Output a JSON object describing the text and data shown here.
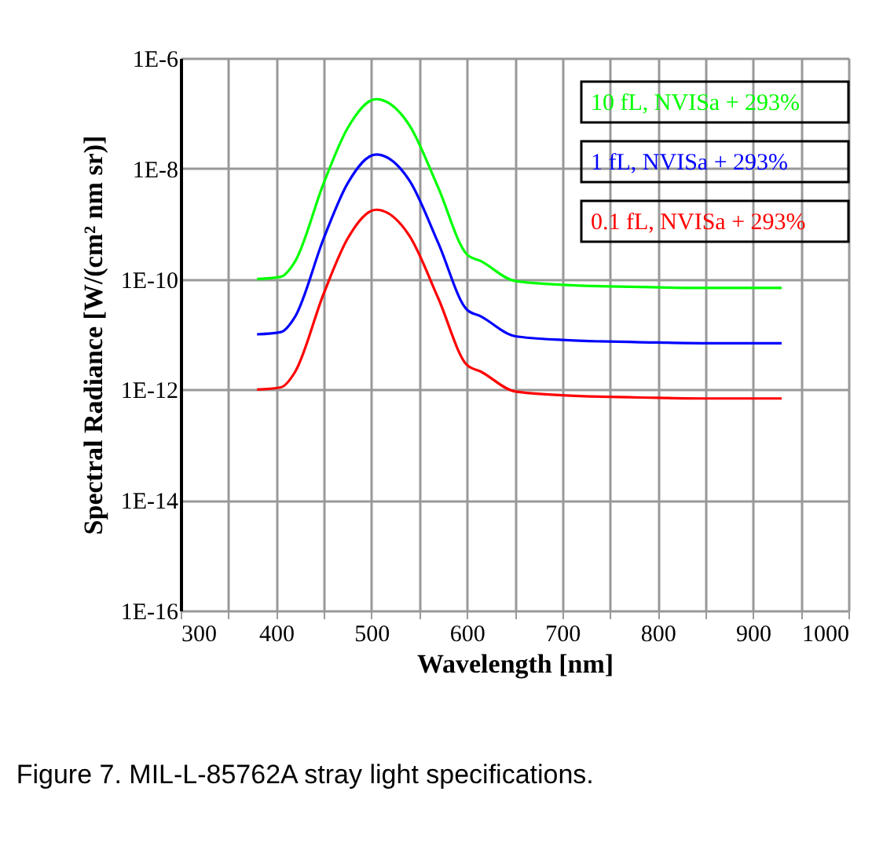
{
  "chart_data": {
    "type": "line",
    "xlabel": "Wavelength [nm]",
    "ylabel": "Spectral Radiance [W/(cm² nm sr)]",
    "x": [
      380,
      405,
      420,
      450,
      475,
      505,
      540,
      570,
      600,
      615,
      650,
      700,
      800,
      850,
      930
    ],
    "series": [
      {
        "name": "10 fL, NVISa + 293%",
        "color": "#00ff00",
        "values": [
          1e-10,
          1.1e-10,
          2.1e-10,
          5.5e-09,
          5.4e-08,
          1.8e-07,
          6e-08,
          4.5e-09,
          2.8e-10,
          2.1e-10,
          9.3e-11,
          7.9e-11,
          7.1e-11,
          6.9e-11,
          6.9e-11
        ]
      },
      {
        "name": "1 fL, NVISa + 293%",
        "color": "#0000ff",
        "values": [
          1e-11,
          1.1e-11,
          2.1e-11,
          5.5e-10,
          5.4e-09,
          1.8e-08,
          6e-09,
          4.5e-10,
          2.8e-11,
          2.1e-11,
          9.3e-12,
          7.9e-12,
          7.1e-12,
          6.9e-12,
          6.9e-12
        ]
      },
      {
        "name": "0.1 fL, NVISa + 293%",
        "color": "#ff0000",
        "values": [
          1e-12,
          1.1e-12,
          2.1e-12,
          5.5e-11,
          5.4e-10,
          1.8e-09,
          6e-10,
          4.5e-11,
          2.8e-12,
          2.1e-12,
          9.3e-13,
          7.9e-13,
          7.1e-13,
          6.9e-13,
          6.9e-13
        ]
      }
    ],
    "log": "y",
    "xlim": [
      300,
      1000
    ],
    "xticks": [
      300,
      {
        "value": 350,
        "label": null
      },
      400,
      {
        "value": 450,
        "label": null
      },
      500,
      {
        "value": 550,
        "label": null
      },
      600,
      {
        "value": 650,
        "label": null
      },
      700,
      {
        "value": 750,
        "label": null
      },
      800,
      {
        "value": 850,
        "label": null
      },
      900,
      {
        "value": 950,
        "label": null
      },
      1000
    ],
    "ylim": [
      1e-16,
      1e-06
    ],
    "yticks": [
      {
        "value": 1e-16,
        "label": "1E-16"
      },
      {
        "value": 1e-14,
        "label": "1E-14"
      },
      {
        "value": 1e-12,
        "label": "1E-12"
      },
      {
        "value": 1e-10,
        "label": "1E-10"
      },
      {
        "value": 1e-08,
        "label": "1E-8"
      },
      {
        "value": 1e-06,
        "label": "1E-6"
      }
    ],
    "grid": true,
    "legend": "top right",
    "annotations": [
      "Figure 7.  MIL-L-85762A stray light specifications."
    ]
  }
}
